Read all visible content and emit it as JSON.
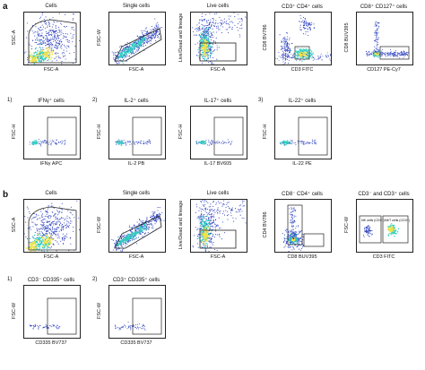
{
  "figure": {
    "panel_a": "a",
    "panel_b": "b",
    "row_a1": [
      {
        "title": "Cells",
        "xlabel": "FSC-A",
        "ylabel": "SSC-A"
      },
      {
        "title": "Single cells",
        "xlabel": "FSC-A",
        "ylabel": "FSC-W"
      },
      {
        "title": "Live cells",
        "xlabel": "FSC-A",
        "ylabel": "Live/Dead and lineage"
      },
      {
        "title": "CD3⁺ CD4⁺ cells",
        "xlabel": "CD3 FITC",
        "ylabel": "CD8 BV786"
      },
      {
        "title": "CD8⁺ CD127⁺ cells",
        "xlabel": "CD127 PE-Cy7",
        "ylabel": "CD8 BUV395"
      }
    ],
    "row_a2": [
      {
        "num": "1)",
        "title": "IFNγ⁺ cells",
        "xlabel": "IFNγ APC",
        "ylabel": "FSC-H"
      },
      {
        "num": "2)",
        "title": "IL-2⁺ cells",
        "xlabel": "IL-2 PB",
        "ylabel": "FSC-H"
      },
      {
        "num": "",
        "title": "IL-17⁺ cells",
        "xlabel": "IL-17 BV605",
        "ylabel": "FSC-H"
      },
      {
        "num": "3)",
        "title": "IL-22⁺ cells",
        "xlabel": "IL-22 PE",
        "ylabel": "FSC-H"
      }
    ],
    "row_b1": [
      {
        "title": "Cells",
        "xlabel": "FSC-A",
        "ylabel": "SSC-A"
      },
      {
        "title": "Single cells",
        "xlabel": "FSC-A",
        "ylabel": "FSC-W"
      },
      {
        "title": "Live cells",
        "xlabel": "FSC-A",
        "ylabel": "Live/Dead and lineage"
      },
      {
        "title": "CD8⁻ CD4⁺ cells",
        "xlabel": "CD8 BUV395",
        "ylabel": "CD4 BV786"
      },
      {
        "title": "CD3⁻ and CD3⁺ cells",
        "xlabel": "CD3 FITC",
        "ylabel": "FSC-W",
        "gate_left": "NK cells (CD3⁻)",
        "gate_right": "NKT cells (CD3⁺)"
      }
    ],
    "row_b2": [
      {
        "num": "1)",
        "title": "CD3⁻ CD335⁺ cells",
        "xlabel": "CD335 BV737",
        "ylabel": "FSC-W"
      },
      {
        "num": "2)",
        "title": "CD3⁺ CD335⁺ cells",
        "xlabel": "CD335 BV737",
        "ylabel": "FSC-W"
      }
    ],
    "colors": {
      "density_low": "#2b3fbf",
      "density_mid": "#2fd0c0",
      "density_high": "#f4e24a",
      "gate": "#222222"
    }
  }
}
